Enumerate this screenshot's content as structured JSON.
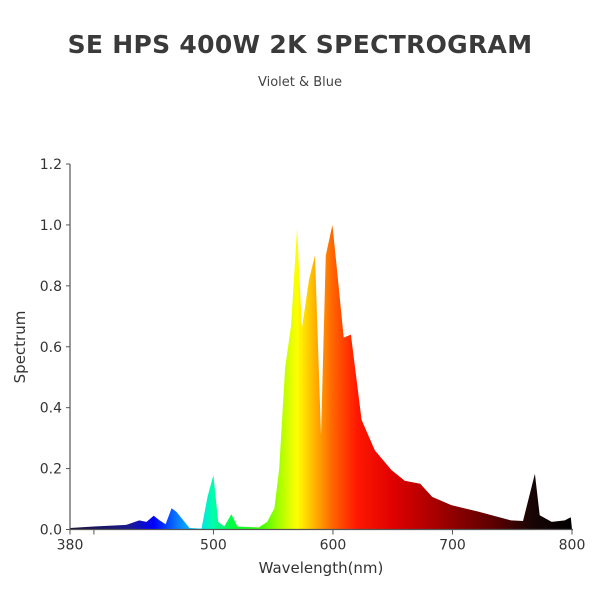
{
  "chart_data": {
    "type": "area",
    "title": "SE HPS 400W 2K SPECTROGRAM",
    "subtitle": "Violet & Blue",
    "xlabel": "Wavelength(nm)",
    "ylabel": "Spectrum",
    "xlim": [
      380,
      800
    ],
    "ylim": [
      0,
      1.2
    ],
    "x_ticks": [
      380,
      500,
      600,
      700,
      800
    ],
    "x_tick_labels": [
      "380",
      "500",
      "600",
      "700",
      "800"
    ],
    "y_ticks": [
      0,
      0.2,
      0.4,
      0.6,
      0.8,
      1.0,
      1.2
    ],
    "y_tick_labels": [
      "0.0",
      "0.2",
      "0.4",
      "0.6",
      "0.8",
      "1.0",
      "1.2"
    ],
    "grid": false,
    "fill": "wavelength-colored gradient",
    "gradient_stops": [
      {
        "nm": 380,
        "color": "#1a1035"
      },
      {
        "nm": 430,
        "color": "#1a1a90"
      },
      {
        "nm": 450,
        "color": "#0000ff"
      },
      {
        "nm": 470,
        "color": "#0a7cff"
      },
      {
        "nm": 488,
        "color": "#00e0f0"
      },
      {
        "nm": 500,
        "color": "#00ffa8"
      },
      {
        "nm": 515,
        "color": "#00ff40"
      },
      {
        "nm": 540,
        "color": "#40ff00"
      },
      {
        "nm": 555,
        "color": "#a8ff00"
      },
      {
        "nm": 570,
        "color": "#ffff00"
      },
      {
        "nm": 585,
        "color": "#ffb000"
      },
      {
        "nm": 600,
        "color": "#ff6400"
      },
      {
        "nm": 620,
        "color": "#ff1800"
      },
      {
        "nm": 650,
        "color": "#e00000"
      },
      {
        "nm": 700,
        "color": "#900000"
      },
      {
        "nm": 740,
        "color": "#520000"
      },
      {
        "nm": 765,
        "color": "#1a0505"
      },
      {
        "nm": 800,
        "color": "#000000"
      }
    ],
    "x": [
      380,
      400,
      427,
      438,
      444,
      450,
      455,
      460,
      465,
      469,
      480,
      490,
      495,
      500,
      504,
      509,
      515,
      520,
      538,
      545,
      551,
      555,
      560,
      565,
      570,
      574,
      580,
      585,
      590,
      594,
      599.5,
      604,
      609,
      615,
      624,
      635,
      649,
      660,
      673,
      683,
      699,
      722,
      749,
      759,
      769,
      773,
      783,
      794,
      799,
      800
    ],
    "y": [
      0.005,
      0.01,
      0.015,
      0.03,
      0.025,
      0.045,
      0.03,
      0.017,
      0.07,
      0.058,
      0.005,
      0.003,
      0.107,
      0.178,
      0.025,
      0.01,
      0.05,
      0.01,
      0.007,
      0.025,
      0.07,
      0.2,
      0.53,
      0.67,
      0.99,
      0.66,
      0.82,
      0.9,
      0.31,
      0.9,
      1.0,
      0.83,
      0.63,
      0.64,
      0.36,
      0.26,
      0.195,
      0.16,
      0.15,
      0.107,
      0.08,
      0.058,
      0.03,
      0.028,
      0.183,
      0.047,
      0.025,
      0.03,
      0.04,
      0.0
    ]
  }
}
